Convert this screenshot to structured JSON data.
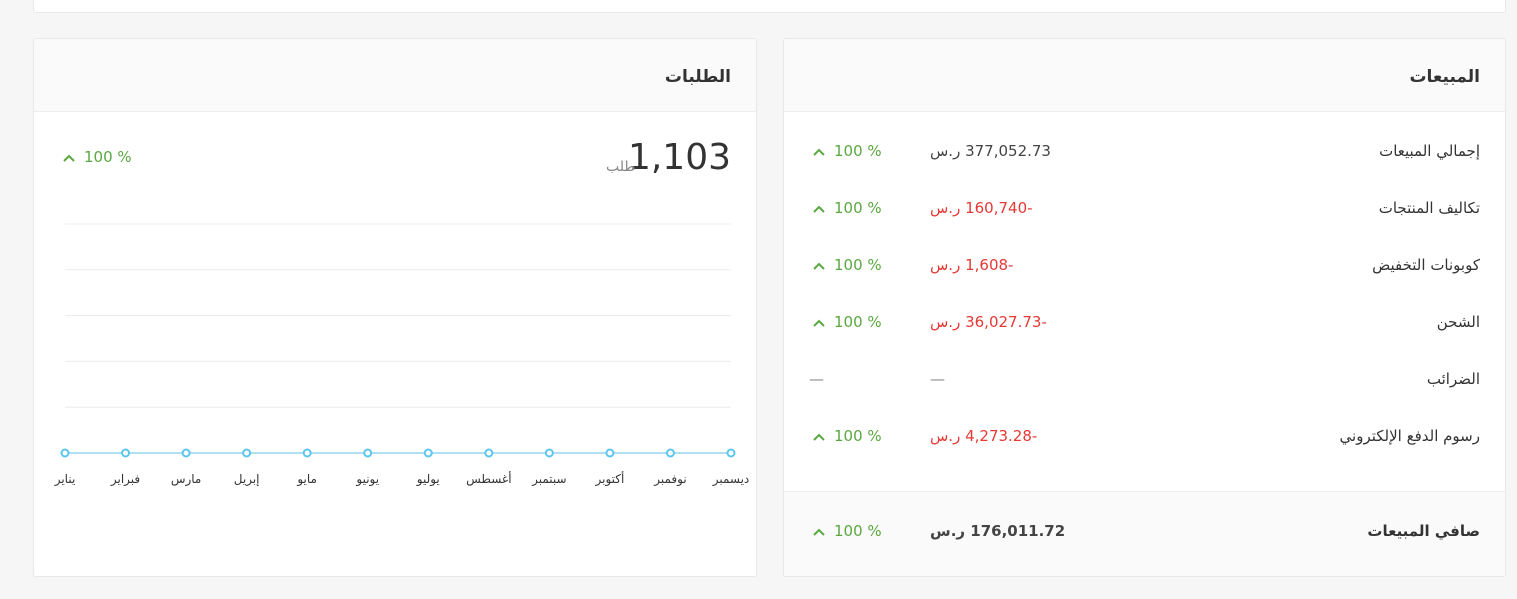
{
  "sales": {
    "title": "المبيعات",
    "rows": [
      {
        "label": "إجمالي المبيعات",
        "amount": "377,052.73 ر.س",
        "change": "100 %"
      },
      {
        "label": "تكاليف المنتجات",
        "amount": "-160,740 ر.س",
        "change": "100 %"
      },
      {
        "label": "كوبونات التخفيض",
        "amount": "-1,608 ر.س",
        "change": "100 %"
      },
      {
        "label": "الشحن",
        "amount": "-36,027.73 ر.س",
        "change": "100 %"
      },
      {
        "label": "الضرائب",
        "amount": "—",
        "change": "—"
      },
      {
        "label": "رسوم الدفع الإلكتروني",
        "amount": "-4,273.28 ر.س",
        "change": "100 %"
      }
    ],
    "net": {
      "label": "صافي المبيعات",
      "amount": "176,011.72 ر.س",
      "change": "100 %"
    }
  },
  "orders": {
    "title": "الطلبات",
    "count": "1,103",
    "unit": "طلب",
    "change": "100 %"
  },
  "chart_data": {
    "type": "line",
    "categories": [
      "يناير",
      "فبراير",
      "مارس",
      "إبريل",
      "مايو",
      "يونيو",
      "يوليو",
      "أغسطس",
      "سبتمبر",
      "أكتوبر",
      "نوفمبر",
      "ديسمبر"
    ],
    "series": [
      {
        "color": "#aee0f2",
        "values": [
          0,
          0,
          0,
          0,
          0,
          0,
          0,
          0,
          0,
          0,
          0,
          0
        ]
      }
    ],
    "ylim": [
      0,
      5
    ],
    "yticks": [
      0,
      1,
      2,
      3,
      4,
      5
    ],
    "grid": true
  }
}
